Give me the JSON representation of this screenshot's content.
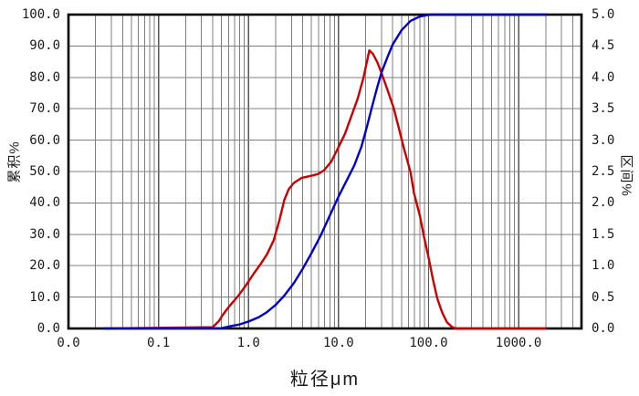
{
  "chart_data": {
    "type": "line",
    "title": "",
    "xlabel": "粒径μm",
    "ylabel_left": "累积%",
    "ylabel_right": "区间%",
    "x_scale": "log",
    "x_range": [
      0.01,
      5000
    ],
    "y_left_range": [
      0,
      100
    ],
    "y_right_range": [
      0,
      5
    ],
    "grid": "on",
    "legend": "none",
    "x_ticks": [
      {
        "label": "0.0",
        "value": 0.01
      },
      {
        "label": "0.1",
        "value": 0.1
      },
      {
        "label": "1.0",
        "value": 1
      },
      {
        "label": "10.0",
        "value": 10
      },
      {
        "label": "100.0",
        "value": 100
      },
      {
        "label": "1000.0",
        "value": 1000
      }
    ],
    "y_left_ticks": [
      {
        "label": "100.0",
        "value": 100
      },
      {
        "label": "90.0",
        "value": 90
      },
      {
        "label": "80.0",
        "value": 80
      },
      {
        "label": "70.0",
        "value": 70
      },
      {
        "label": "60.0",
        "value": 60
      },
      {
        "label": "50.0",
        "value": 50
      },
      {
        "label": "40.0",
        "value": 40
      },
      {
        "label": "30.0",
        "value": 30
      },
      {
        "label": "20.0",
        "value": 20
      },
      {
        "label": "10.0",
        "value": 10
      },
      {
        "label": "0.0",
        "value": 0
      }
    ],
    "y_right_ticks": [
      {
        "label": "5.0",
        "value": 5.0
      },
      {
        "label": "4.5",
        "value": 4.5
      },
      {
        "label": "4.0",
        "value": 4.0
      },
      {
        "label": "3.5",
        "value": 3.5
      },
      {
        "label": "3.0",
        "value": 3.0
      },
      {
        "label": "2.5",
        "value": 2.5
      },
      {
        "label": "2.0",
        "value": 2.0
      },
      {
        "label": "1.5",
        "value": 1.5
      },
      {
        "label": "1.0",
        "value": 1.0
      },
      {
        "label": "0.5",
        "value": 0.5
      },
      {
        "label": "0.0",
        "value": 0.0
      }
    ],
    "series": [
      {
        "name": "interval-distribution",
        "axis": "right",
        "color": "#cc0000",
        "points": [
          [
            0.025,
            0
          ],
          [
            0.4,
            0.02
          ],
          [
            0.47,
            0.12
          ],
          [
            0.52,
            0.22
          ],
          [
            0.6,
            0.34
          ],
          [
            0.76,
            0.51
          ],
          [
            0.95,
            0.7
          ],
          [
            1.15,
            0.88
          ],
          [
            1.4,
            1.05
          ],
          [
            1.6,
            1.18
          ],
          [
            1.9,
            1.4
          ],
          [
            2.2,
            1.72
          ],
          [
            2.5,
            2.05
          ],
          [
            2.8,
            2.22
          ],
          [
            3.2,
            2.32
          ],
          [
            3.9,
            2.4
          ],
          [
            4.9,
            2.43
          ],
          [
            5.9,
            2.46
          ],
          [
            6.9,
            2.52
          ],
          [
            8.3,
            2.66
          ],
          [
            9.7,
            2.85
          ],
          [
            11.8,
            3.1
          ],
          [
            13.8,
            3.37
          ],
          [
            16.3,
            3.66
          ],
          [
            18.8,
            3.98
          ],
          [
            20.6,
            4.24
          ],
          [
            22.0,
            4.43
          ],
          [
            24.0,
            4.38
          ],
          [
            27.0,
            4.24
          ],
          [
            30.0,
            4.07
          ],
          [
            35.0,
            3.8
          ],
          [
            41.0,
            3.51
          ],
          [
            47.0,
            3.18
          ],
          [
            53.0,
            2.88
          ],
          [
            63.0,
            2.49
          ],
          [
            69.0,
            2.15
          ],
          [
            80.0,
            1.8
          ],
          [
            89.0,
            1.46
          ],
          [
            100.0,
            1.13
          ],
          [
            112.0,
            0.78
          ],
          [
            125.0,
            0.48
          ],
          [
            142.0,
            0.25
          ],
          [
            160.0,
            0.1
          ],
          [
            180.0,
            0.03
          ],
          [
            200.0,
            0
          ],
          [
            2000.0,
            0
          ]
        ]
      },
      {
        "name": "cumulative-distribution",
        "axis": "left",
        "color": "#0000cc",
        "points": [
          [
            0.025,
            0
          ],
          [
            0.5,
            0.1
          ],
          [
            0.6,
            0.6
          ],
          [
            0.8,
            1.3
          ],
          [
            1.0,
            2.2
          ],
          [
            1.3,
            3.6
          ],
          [
            1.6,
            5.2
          ],
          [
            2.0,
            7.5
          ],
          [
            2.5,
            10.5
          ],
          [
            3.2,
            14.5
          ],
          [
            4.0,
            19.0
          ],
          [
            5.0,
            24.0
          ],
          [
            6.3,
            29.5
          ],
          [
            8.0,
            36.0
          ],
          [
            10.0,
            42.0
          ],
          [
            12.5,
            47.5
          ],
          [
            15.0,
            52.0
          ],
          [
            18.0,
            58.0
          ],
          [
            21.0,
            65.0
          ],
          [
            23.5,
            70.5
          ],
          [
            27.0,
            77.0
          ],
          [
            30.0,
            81.5
          ],
          [
            35.0,
            86.5
          ],
          [
            40.0,
            90.5
          ],
          [
            50.0,
            95.0
          ],
          [
            63.0,
            98.0
          ],
          [
            80.0,
            99.4
          ],
          [
            105.0,
            100.0
          ],
          [
            2000.0,
            100.0
          ]
        ]
      }
    ],
    "colors": {
      "border": "#000000",
      "grid_minor": "#7f7f7f",
      "grid_major": "#555555",
      "background": "#ffffff",
      "cumulative_line": "#0000cc",
      "interval_line": "#cc0000"
    }
  }
}
